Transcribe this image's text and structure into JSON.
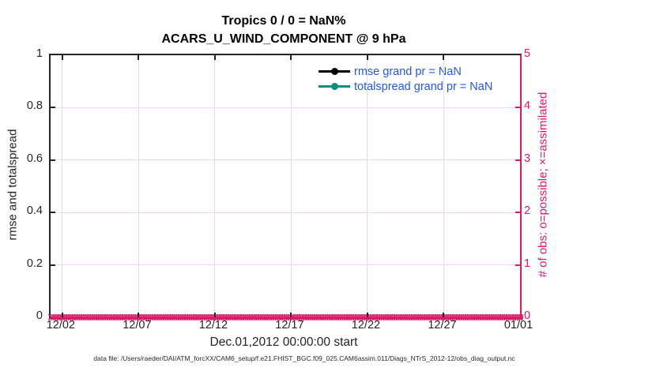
{
  "figure": {
    "title": "Tropics 0 / 0 = NaN%",
    "subtitle": "ACARS_U_WIND_COMPONENT @ 9 hPa",
    "footer": "data file: /Users/raeder/DAI/ATM_forcXX/CAM6_setup/f.e21.FHIST_BGC.f09_025.CAM6assim.011/Diags_NTrS_2012-12/obs_diag_output.nc"
  },
  "chart_data": {
    "type": "line",
    "title": "Tropics 0 / 0 = NaN%",
    "subtitle": "ACARS_U_WIND_COMPONENT @ 9 hPa",
    "xlabel": "Dec.01,2012 00:00:00 start",
    "ylabel_left": "rmse and totalspread",
    "ylabel_right": "# of obs: o=possible; ×=assimilated",
    "ylim_left": [
      0,
      1
    ],
    "ylim_right": [
      0,
      5
    ],
    "grid": true,
    "legend_position": "top-right inside plot, no box",
    "x_ticks": [
      {
        "label": "12/02",
        "pos": 2.5
      },
      {
        "label": "12/07",
        "pos": 18.75
      },
      {
        "label": "12/12",
        "pos": 35
      },
      {
        "label": "12/17",
        "pos": 51.25
      },
      {
        "label": "12/22",
        "pos": 67.5
      },
      {
        "label": "12/27",
        "pos": 83.75
      },
      {
        "label": "01/01",
        "pos": 100
      }
    ],
    "y_ticks_left": [
      {
        "label": "0",
        "pos": 0
      },
      {
        "label": "0.2",
        "pos": 20
      },
      {
        "label": "0.4",
        "pos": 40
      },
      {
        "label": "0.6",
        "pos": 60
      },
      {
        "label": "0.8",
        "pos": 80
      },
      {
        "label": "1",
        "pos": 100
      }
    ],
    "y_ticks_right": [
      {
        "label": "0",
        "pos": 0
      },
      {
        "label": "1",
        "pos": 20
      },
      {
        "label": "2",
        "pos": 40
      },
      {
        "label": "3",
        "pos": 60
      },
      {
        "label": "4",
        "pos": 80
      },
      {
        "label": "5",
        "pos": 100
      }
    ],
    "series": [
      {
        "name": "rmse",
        "legend": "rmse grand pr = NaN",
        "color": "#000000",
        "axis": "left",
        "values": []
      },
      {
        "name": "totalspread",
        "legend": "totalspread grand pr = NaN",
        "color": "#00917e",
        "axis": "left",
        "values": []
      },
      {
        "name": "obs_count",
        "legend": null,
        "color": "#e0186a",
        "axis": "right",
        "marker": "o=possible, x=assimilated",
        "constant_value": 0,
        "x_span_pos": [
          0,
          100
        ]
      }
    ]
  },
  "legend": {
    "entries": [
      {
        "label": "rmse grand pr = NaN",
        "color": "#000000"
      },
      {
        "label": "totalspread grand pr = NaN",
        "color": "#00917e"
      }
    ]
  },
  "marker_band": {
    "glyph": "✕",
    "count": 220,
    "color": "#e0186a"
  },
  "colors": {
    "axis": "#242424",
    "right_axis": "#e0186a",
    "grid_vertical": "#dedede",
    "grid_horizontal": "#f6d2e2",
    "legend_text": "#2357e9",
    "rmse_line": "#000000",
    "totalspread_line": "#00917e",
    "obs_marker": "#e0186a"
  }
}
